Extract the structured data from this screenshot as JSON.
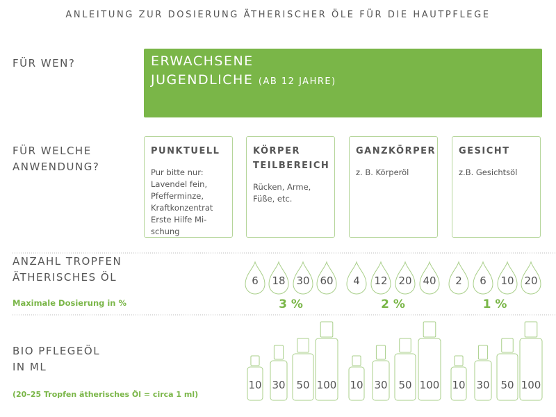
{
  "title": "ANLEITUNG ZUR DOSIERUNG ÄTHERISCHER ÖLE FÜR DIE HAUTPFLEGE",
  "who": {
    "label": "FÜR WEN?",
    "line1": "ERWACHSENE",
    "line2": "JUGENDLICHE",
    "line2_note": "(AB 12 JAHRE)"
  },
  "application": {
    "label": [
      "FÜR WELCHE",
      "ANWENDUNG?"
    ],
    "cards": [
      {
        "title": [
          "PUNKTUELL"
        ],
        "text": [
          "Pur bitte nur:",
          "Lavendel fein,",
          "Pfefferminze,",
          "Kraftkonzentrat",
          "Erste Hilfe Mi-",
          "schung"
        ]
      },
      {
        "title": [
          "KÖRPER",
          "TEILBEREICH"
        ],
        "text": [
          "Rücken, Arme,",
          "Füße, etc."
        ]
      },
      {
        "title": [
          "GANZKÖRPER"
        ],
        "text": [
          "z. B. Körperöl"
        ]
      },
      {
        "title": [
          "GESICHT"
        ],
        "text": [
          "z.B. Gesichtsöl"
        ]
      }
    ]
  },
  "drops": {
    "label": [
      "ANZAHL TROPFEN",
      "ÄTHERISCHES ÖL"
    ],
    "dosage_label": "Maximale Dosierung in %",
    "groups": [
      {
        "counts": [
          "6",
          "18",
          "30",
          "60"
        ],
        "percent": "3 %"
      },
      {
        "counts": [
          "4",
          "12",
          "20",
          "40"
        ],
        "percent": "2 %"
      },
      {
        "counts": [
          "2",
          "6",
          "10",
          "20"
        ],
        "percent": "1 %"
      }
    ]
  },
  "bottles": {
    "label": [
      "BIO PFLEGEÖL",
      "IN ML"
    ],
    "note": "(20–25 Tropfen ätherisches Öl = circa 1 ml)",
    "groups": [
      [
        "10",
        "30",
        "50",
        "100"
      ],
      [
        "10",
        "30",
        "50",
        "100"
      ],
      [
        "10",
        "30",
        "50",
        "100"
      ]
    ]
  }
}
